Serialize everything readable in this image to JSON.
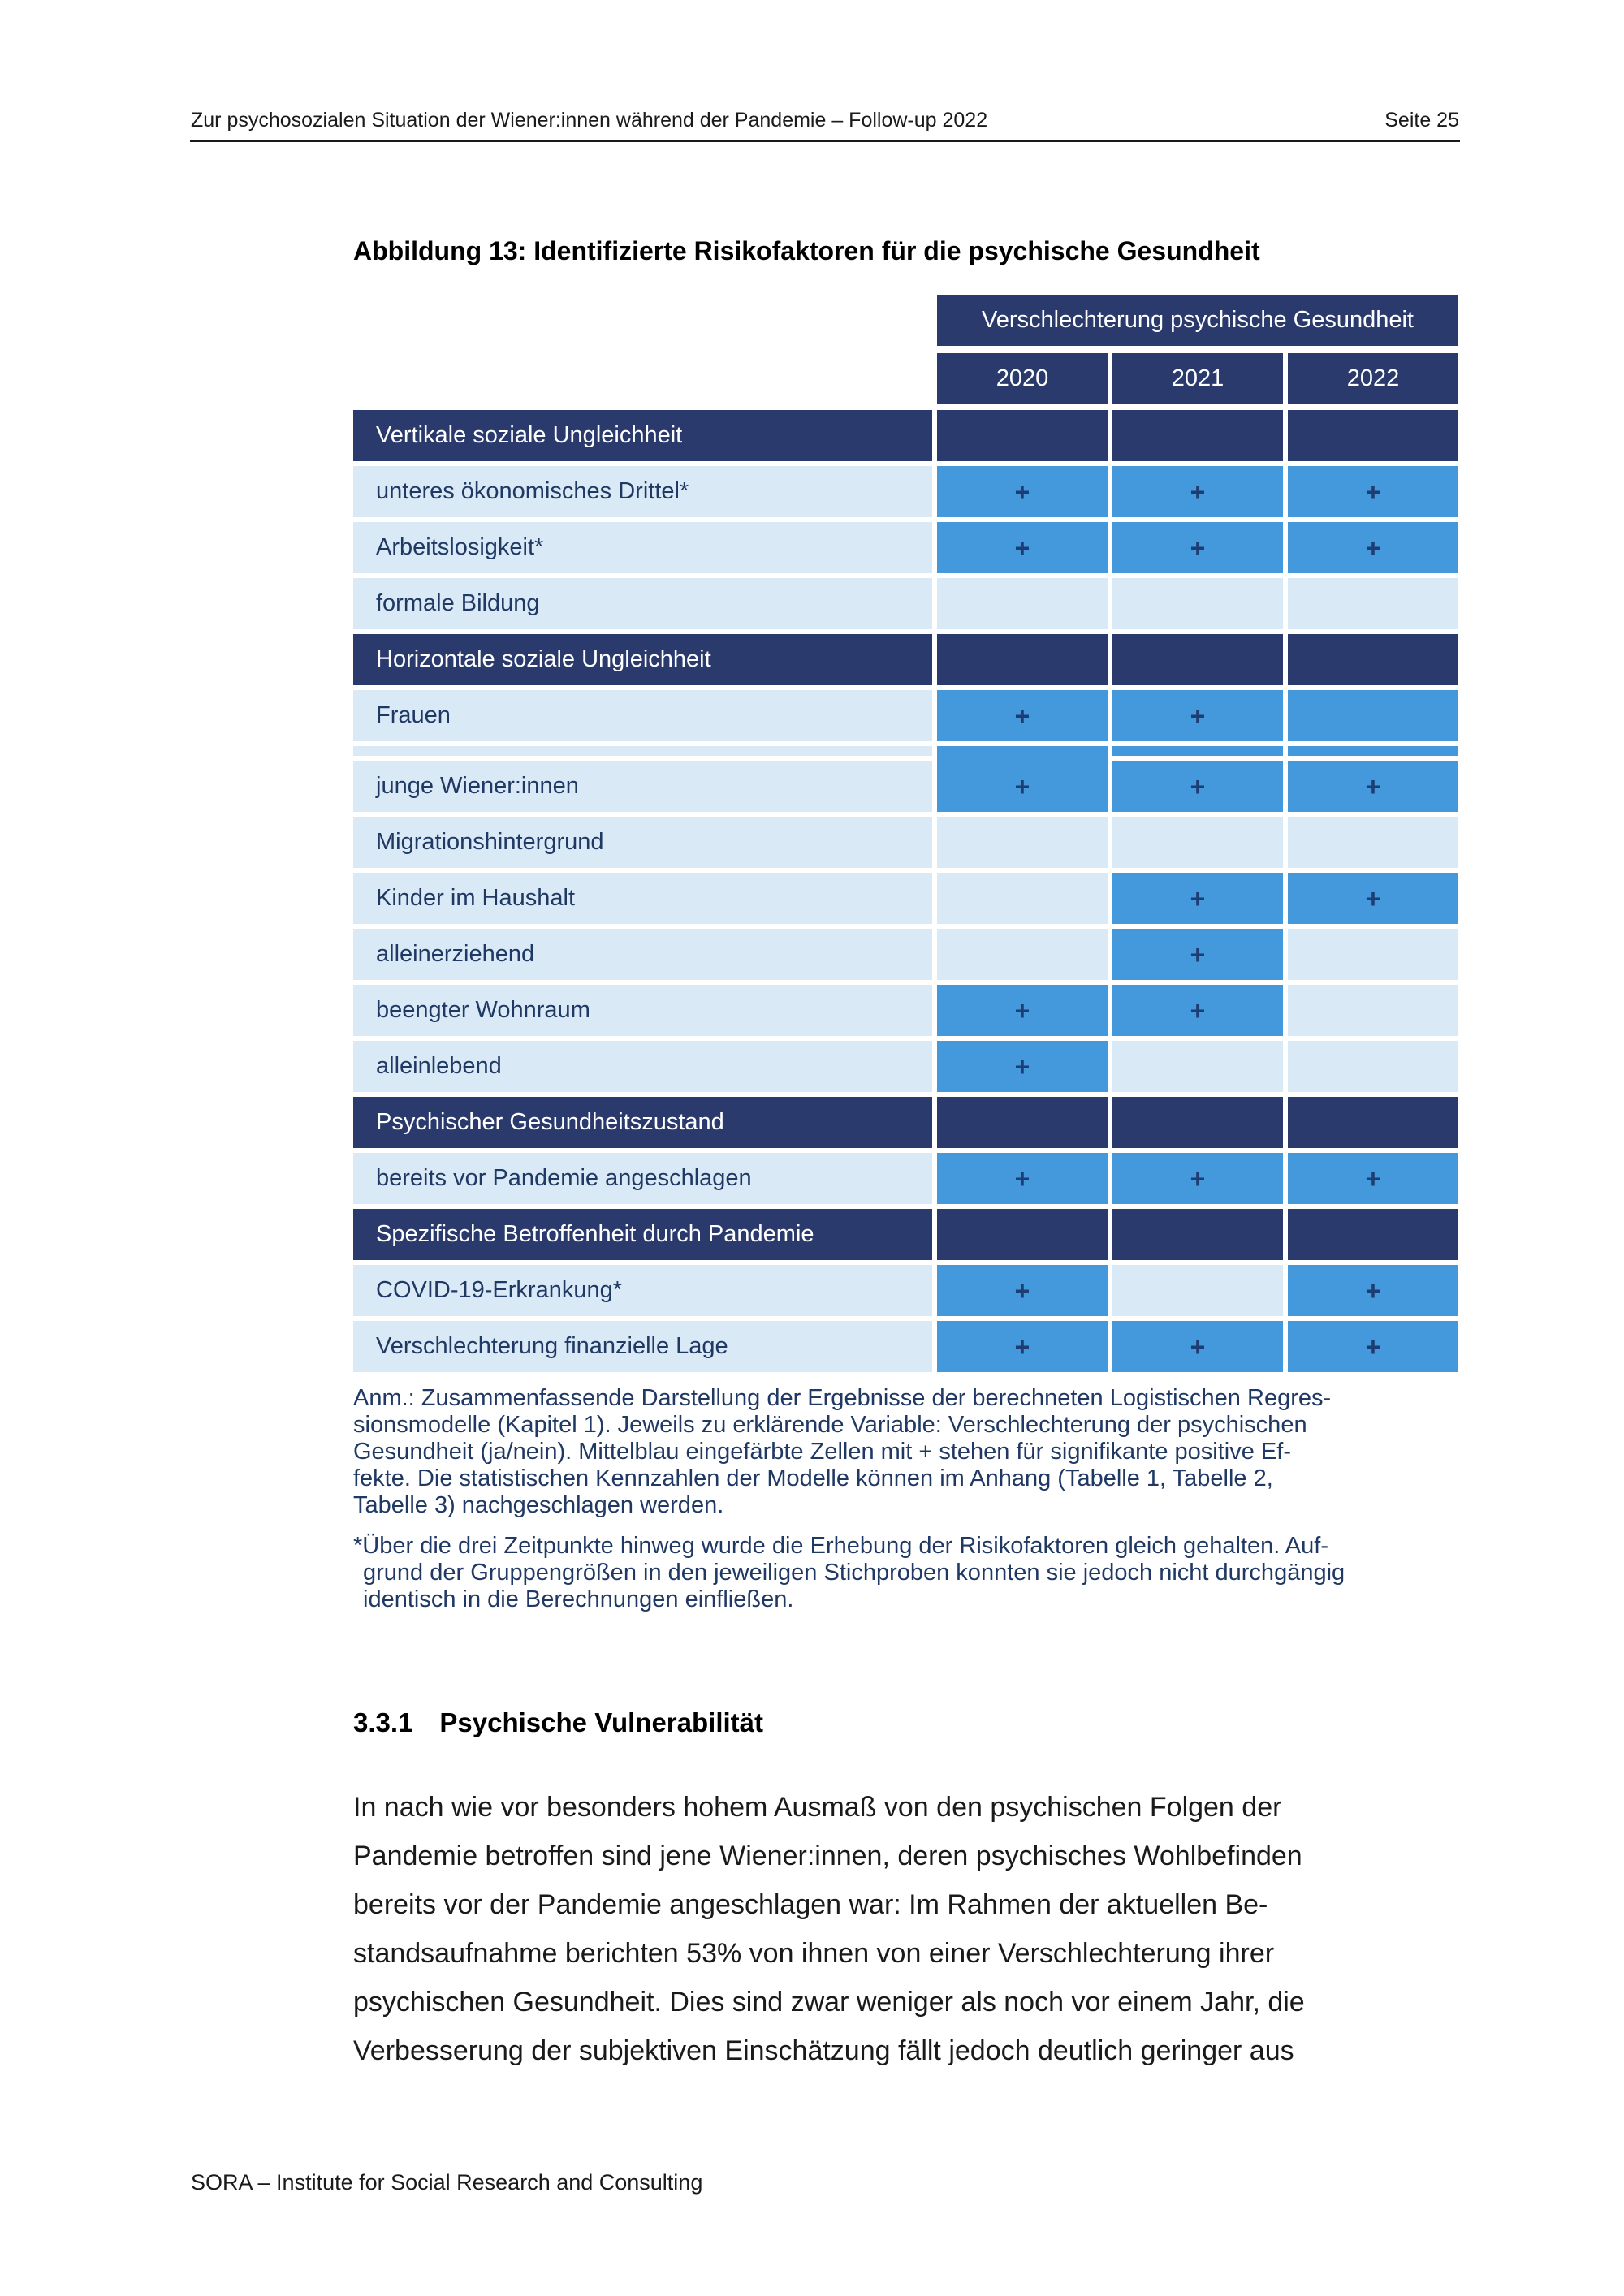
{
  "header": {
    "title": "Zur psychosozialen Situation der Wiener:innen während der Pandemie – Follow-up 2022",
    "page_number": "Seite 25"
  },
  "figure": {
    "title": "Abbildung 13: Identifizierte Risikofaktoren für die psychische Gesundheit",
    "table": {
      "header": "Verschlechterung psychische Gesundheit",
      "years": [
        "2020",
        "2021",
        "2022"
      ],
      "plus_symbol": "+",
      "rows": [
        {
          "type": "category",
          "label": "Vertikale soziale Ungleichheit",
          "cells": [
            "dark",
            "dark",
            "dark"
          ]
        },
        {
          "type": "item",
          "label": "unteres ökonomisches Drittel*",
          "cells": [
            "plus",
            "plus",
            "plus"
          ]
        },
        {
          "type": "item",
          "label": "Arbeitslosigkeit*",
          "cells": [
            "plus",
            "plus",
            "plus"
          ]
        },
        {
          "type": "item",
          "label": "formale Bildung",
          "cells": [
            "blank",
            "blank",
            "blank"
          ]
        },
        {
          "type": "category",
          "label": "Horizontale soziale Ungleichheit",
          "cells": [
            "dark",
            "dark",
            "dark"
          ]
        },
        {
          "type": "item",
          "label": "Frauen",
          "cells": [
            "plus",
            "plus",
            "filled"
          ]
        },
        {
          "type": "sliver",
          "label": "",
          "cells": [
            "filled_merge",
            "filled",
            "filled"
          ]
        },
        {
          "type": "item",
          "label": "junge Wiener:innen",
          "cells": [
            "plus",
            "plus",
            "plus"
          ]
        },
        {
          "type": "item",
          "label": "Migrationshintergrund",
          "cells": [
            "blank",
            "blank",
            "blank"
          ]
        },
        {
          "type": "item",
          "label": "Kinder im Haushalt",
          "cells": [
            "blank",
            "plus",
            "plus"
          ]
        },
        {
          "type": "item",
          "label": "alleinerziehend",
          "cells": [
            "blank",
            "plus",
            "blank"
          ]
        },
        {
          "type": "item",
          "label": "beengter Wohnraum",
          "cells": [
            "plus",
            "plus",
            "blank"
          ]
        },
        {
          "type": "item",
          "label": "alleinlebend",
          "cells": [
            "plus",
            "blank",
            "blank"
          ]
        },
        {
          "type": "category",
          "label": "Psychischer Gesundheitszustand",
          "cells": [
            "dark",
            "dark",
            "dark"
          ]
        },
        {
          "type": "item",
          "label": "bereits vor Pandemie angeschlagen",
          "cells": [
            "plus",
            "plus",
            "plus"
          ]
        },
        {
          "type": "category",
          "label": "Spezifische Betroffenheit durch Pandemie",
          "cells": [
            "dark",
            "dark",
            "dark"
          ]
        },
        {
          "type": "item",
          "label": "COVID-19-Erkrankung*",
          "cells": [
            "plus",
            "blank",
            "plus"
          ]
        },
        {
          "type": "item",
          "label": "Verschlechterung finanzielle Lage",
          "cells": [
            "plus",
            "plus",
            "plus"
          ]
        }
      ]
    },
    "note_lines": [
      "Anm.: Zusammenfassende Darstellung der Ergebnisse der berechneten Logistischen Regres-",
      "sionsmodelle (Kapitel 1). Jeweils zu erklärende Variable: Verschlechterung der psychischen",
      "Gesundheit (ja/nein). Mittelblau eingefärbte Zellen mit + stehen für signifikante positive Ef-",
      "fekte. Die statistischen Kennzahlen der Modelle können im Anhang (Tabelle 1, Tabelle 2,",
      "Tabelle 3) nachgeschlagen werden."
    ],
    "footnote_lines": [
      "*Über die drei Zeitpunkte hinweg wurde die Erhebung der Risikofaktoren gleich gehalten. Auf-",
      "grund der Gruppengrößen in den jeweiligen Stichproben konnten sie jedoch nicht durchgängig",
      "identisch in die Berechnungen einfließen."
    ]
  },
  "section": {
    "number": "3.3.1",
    "title": "Psychische Vulnerabilität",
    "paragraph_lines": [
      "In nach wie vor besonders hohem Ausmaß von den psychischen Folgen der",
      "Pandemie betroffen sind jene Wiener:innen, deren psychisches Wohlbefinden",
      "bereits vor der Pandemie angeschlagen war: Im Rahmen der aktuellen Be-",
      "standsaufnahme berichten 53% von ihnen von einer Verschlechterung ihrer",
      "psychischen Gesundheit. Dies sind zwar weniger als noch vor einem Jahr, die",
      "Verbesserung der subjektiven Einschätzung fällt jedoch deutlich geringer aus"
    ]
  },
  "footer": {
    "text": "SORA – Institute for Social Research and Consulting"
  },
  "colors": {
    "dark_navy": "#2a3a6c",
    "medium_blue": "#4399db",
    "light_blue": "#d9e9f6",
    "plus_color": "#1d3d73",
    "label_text": "#1f3864",
    "ink": "#1a1a1a"
  }
}
